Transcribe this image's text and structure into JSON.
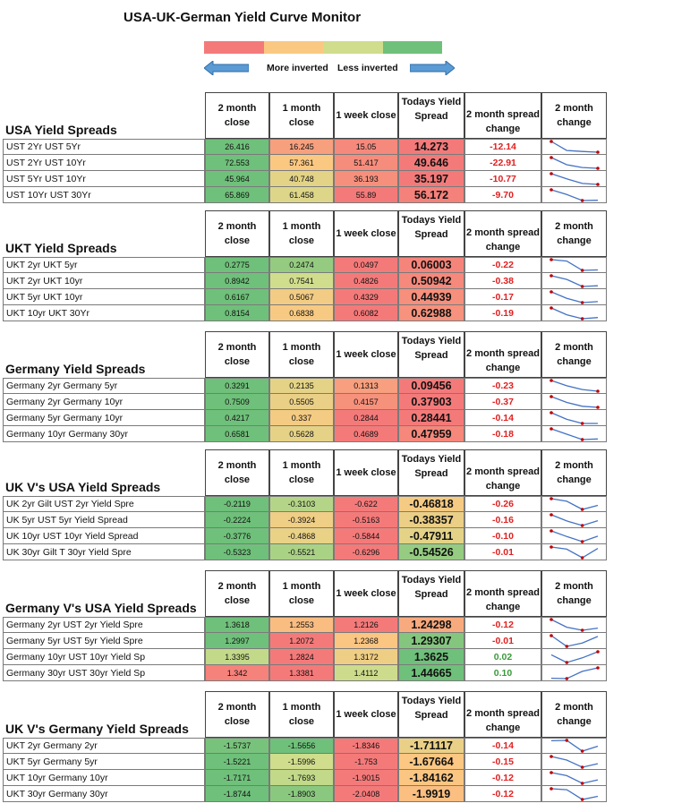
{
  "title": "USA-UK-German  Yield Curve Monitor",
  "legend": {
    "colors": [
      "#f47a7a",
      "#fbc882",
      "#cfdd8c",
      "#6fc07a"
    ],
    "left_label": "More inverted",
    "right_label": "Less inverted",
    "arrow_color": "#5b9bd5"
  },
  "headers": {
    "two_month": "2 month close",
    "one_month": "1 month close",
    "one_week": "1 week close",
    "today": "Todays Yield Spread",
    "spread_change": "2 month spread change",
    "change": "2 month change"
  },
  "sections": [
    {
      "title": "USA Yield Spreads",
      "rows": [
        {
          "name": "UST 2Yr UST 5Yr",
          "m2": "26.416",
          "m1": "16.245",
          "w1": "15.05",
          "today": "14.273",
          "chg": "-12.14",
          "spark": [
            26.416,
            16.245,
            15.05,
            14.273
          ]
        },
        {
          "name": "UST 2Yr UST 10Yr",
          "m2": "72.553",
          "m1": "57.361",
          "w1": "51.417",
          "today": "49.646",
          "chg": "-22.91",
          "spark": [
            72.553,
            57.361,
            51.417,
            49.646
          ]
        },
        {
          "name": "UST 5Yr UST 10Yr",
          "m2": "45.964",
          "m1": "40.748",
          "w1": "36.193",
          "today": "35.197",
          "chg": "-10.77",
          "spark": [
            45.964,
            40.748,
            36.193,
            35.197
          ]
        },
        {
          "name": "UST 10Yr UST 30Yr",
          "m2": "65.869",
          "m1": "61.458",
          "w1": "55.89",
          "today": "56.172",
          "chg": "-9.70",
          "spark": [
            65.869,
            61.458,
            55.89,
            56.172
          ]
        }
      ]
    },
    {
      "title": "UKT Yield Spreads",
      "rows": [
        {
          "name": "UKT 2yr UKT 5yr",
          "m2": "0.2775",
          "m1": "0.2474",
          "w1": "0.0497",
          "today": "0.06003",
          "chg": "-0.22",
          "spark": [
            0.2775,
            0.2474,
            0.0497,
            0.06003
          ]
        },
        {
          "name": "UKT 2yr UKT 10yr",
          "m2": "0.8942",
          "m1": "0.7541",
          "w1": "0.4826",
          "today": "0.50942",
          "chg": "-0.38",
          "spark": [
            0.8942,
            0.7541,
            0.4826,
            0.50942
          ]
        },
        {
          "name": "UKT 5yr UKT 10yr",
          "m2": "0.6167",
          "m1": "0.5067",
          "w1": "0.4329",
          "today": "0.44939",
          "chg": "-0.17",
          "spark": [
            0.6167,
            0.5067,
            0.4329,
            0.44939
          ]
        },
        {
          "name": "UKT 10yr UKT 30Yr",
          "m2": "0.8154",
          "m1": "0.6838",
          "w1": "0.6082",
          "today": "0.62988",
          "chg": "-0.19",
          "spark": [
            0.8154,
            0.6838,
            0.6082,
            0.62988
          ]
        }
      ]
    },
    {
      "title": "Germany Yield Spreads",
      "rows": [
        {
          "name": "Germany 2yr Germany 5yr",
          "m2": "0.3291",
          "m1": "0.2135",
          "w1": "0.1313",
          "today": "0.09456",
          "chg": "-0.23",
          "spark": [
            0.3291,
            0.2135,
            0.1313,
            0.09456
          ]
        },
        {
          "name": "Germany 2yr Germany 10yr",
          "m2": "0.7509",
          "m1": "0.5505",
          "w1": "0.4157",
          "today": "0.37903",
          "chg": "-0.37",
          "spark": [
            0.7509,
            0.5505,
            0.4157,
            0.37903
          ]
        },
        {
          "name": "Germany 5yr Germany 10yr",
          "m2": "0.4217",
          "m1": "0.337",
          "w1": "0.2844",
          "today": "0.28441",
          "chg": "-0.14",
          "spark": [
            0.4217,
            0.337,
            0.2844,
            0.28441
          ]
        },
        {
          "name": "Germany 10yr Germany 30yr",
          "m2": "0.6581",
          "m1": "0.5628",
          "w1": "0.4689",
          "today": "0.47959",
          "chg": "-0.18",
          "spark": [
            0.6581,
            0.5628,
            0.4689,
            0.47959
          ]
        }
      ]
    },
    {
      "title": "UK V's USA Yield Spreads",
      "rows": [
        {
          "name": "UK 2yr Gilt UST 2yr Yield Spre",
          "m2": "-0.2119",
          "m1": "-0.3103",
          "w1": "-0.622",
          "today": "-0.46818",
          "chg": "-0.26",
          "spark": [
            -0.2119,
            -0.3103,
            -0.622,
            -0.46818
          ]
        },
        {
          "name": "UK 5yr UST 5yr Yield Spread",
          "m2": "-0.2224",
          "m1": "-0.3924",
          "w1": "-0.5163",
          "today": "-0.38357",
          "chg": "-0.16",
          "spark": [
            -0.2224,
            -0.3924,
            -0.5163,
            -0.38357
          ]
        },
        {
          "name": "UK 10yr UST 10yr Yield Spread",
          "m2": "-0.3776",
          "m1": "-0.4868",
          "w1": "-0.5844",
          "today": "-0.47911",
          "chg": "-0.10",
          "spark": [
            -0.3776,
            -0.4868,
            -0.5844,
            -0.47911
          ]
        },
        {
          "name": "UK 30yr Gilt T 30yr Yield Spre",
          "m2": "-0.5323",
          "m1": "-0.5521",
          "w1": "-0.6296",
          "today": "-0.54526",
          "chg": "-0.01",
          "spark": [
            -0.5323,
            -0.5521,
            -0.6296,
            -0.54526
          ]
        }
      ]
    },
    {
      "title": "Germany V's USA Yield Spreads",
      "rows": [
        {
          "name": "Germany 2yr UST 2yr Yield Spre",
          "m2": "1.3618",
          "m1": "1.2553",
          "w1": "1.2126",
          "today": "1.24298",
          "chg": "-0.12",
          "spark": [
            1.3618,
            1.2553,
            1.2126,
            1.24298
          ]
        },
        {
          "name": "Germany 5yr UST 5yr Yield Spre",
          "m2": "1.2997",
          "m1": "1.2072",
          "w1": "1.2368",
          "today": "1.29307",
          "chg": "-0.01",
          "spark": [
            1.2997,
            1.2072,
            1.2368,
            1.29307
          ]
        },
        {
          "name": "Germany 10yr UST 10yr Yield Sp",
          "m2": "1.3395",
          "m1": "1.2824",
          "w1": "1.3172",
          "today": "1.3625",
          "chg": "0.02",
          "spark": [
            1.3395,
            1.2824,
            1.3172,
            1.3625
          ]
        },
        {
          "name": "Germany 30yr UST 30yr Yield Sp",
          "m2": "1.342",
          "m1": "1.3381",
          "w1": "1.4112",
          "today": "1.44665",
          "chg": "0.10",
          "spark": [
            1.342,
            1.3381,
            1.4112,
            1.44665
          ]
        }
      ]
    },
    {
      "title": "UK V's Germany Yield Spreads",
      "rows": [
        {
          "name": "UKT 2yr Germany 2yr",
          "m2": "-1.5737",
          "m1": "-1.5656",
          "w1": "-1.8346",
          "today": "-1.71117",
          "chg": "-0.14",
          "spark": [
            -1.5737,
            -1.5656,
            -1.8346,
            -1.71117
          ]
        },
        {
          "name": "UKT 5yr Germany 5yr",
          "m2": "-1.5221",
          "m1": "-1.5996",
          "w1": "-1.753",
          "today": "-1.67664",
          "chg": "-0.15",
          "spark": [
            -1.5221,
            -1.5996,
            -1.753,
            -1.67664
          ]
        },
        {
          "name": "UKT 10yr Germany 10yr",
          "m2": "-1.7171",
          "m1": "-1.7693",
          "w1": "-1.9015",
          "today": "-1.84162",
          "chg": "-0.12",
          "spark": [
            -1.7171,
            -1.7693,
            -1.9015,
            -1.84162
          ]
        },
        {
          "name": "UKT 30yr Germany 30yr",
          "m2": "-1.8744",
          "m1": "-1.8903",
          "w1": "-2.0408",
          "today": "-1.9919",
          "chg": "-0.12",
          "spark": [
            -1.8744,
            -1.8903,
            -2.0408,
            -1.9919
          ]
        }
      ]
    }
  ]
}
